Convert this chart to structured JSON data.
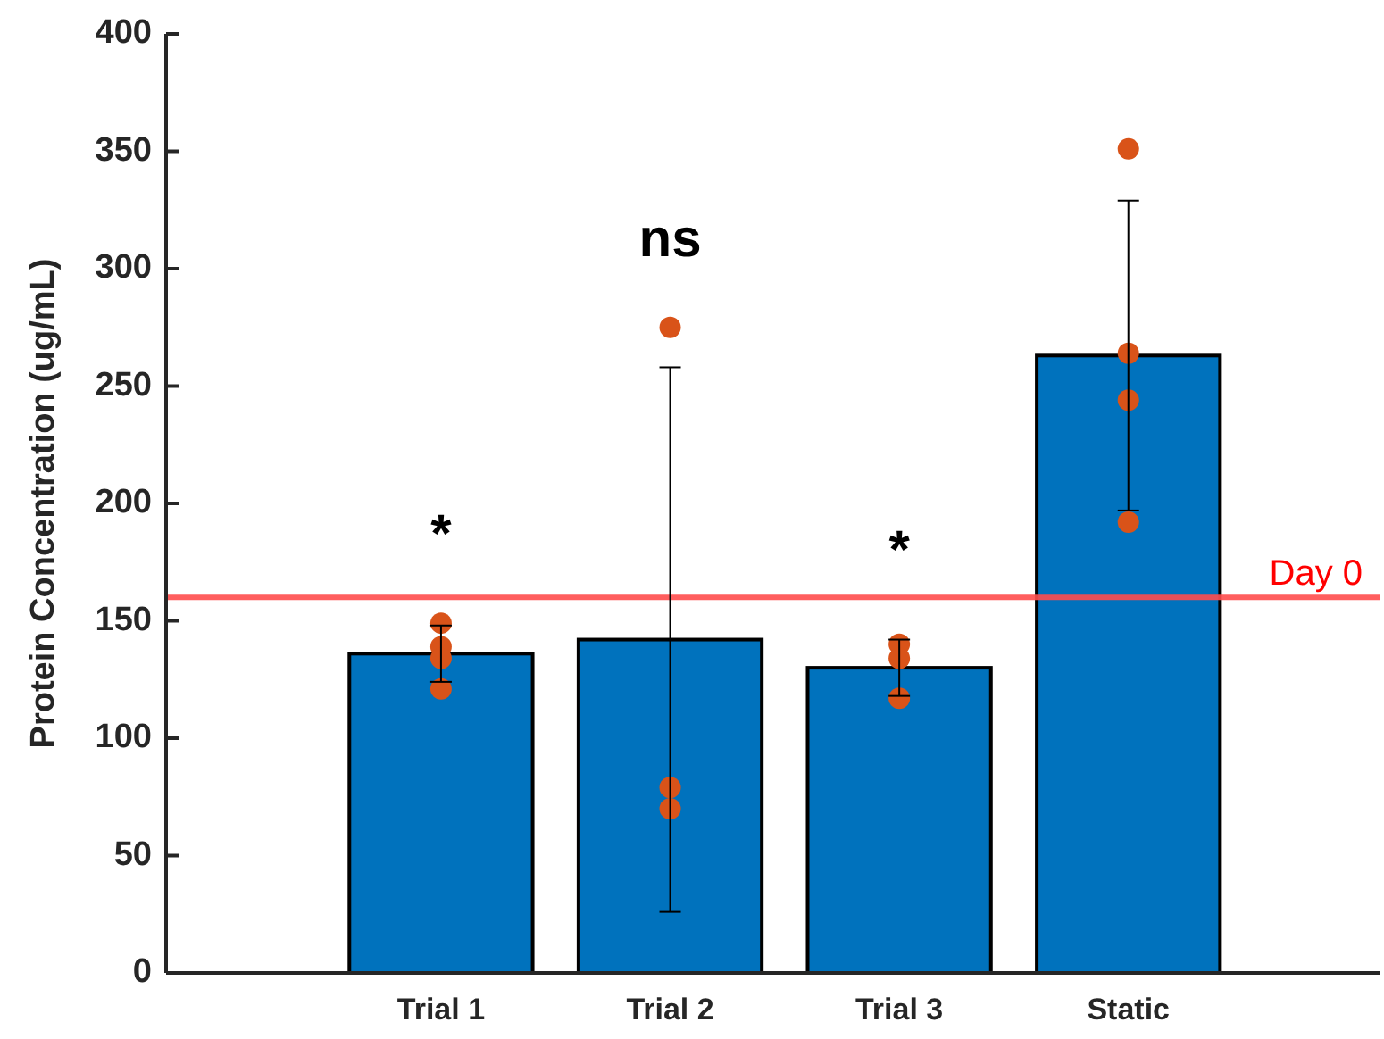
{
  "chart_data": {
    "type": "bar",
    "ylabel": "Protein Concentration (ug/mL)",
    "categories": [
      "Trial 1",
      "Trial 2",
      "Trial 3",
      "Static"
    ],
    "series": [
      {
        "type": "bar",
        "color": "#0072bd",
        "values": [
          136,
          142,
          130,
          263
        ],
        "errors": [
          12,
          116,
          12,
          66
        ]
      },
      {
        "type": "scatter",
        "color": "#d95319",
        "x": [
          "Trial 1",
          "Trial 1",
          "Trial 1",
          "Trial 1",
          "Trial 2",
          "Trial 2",
          "Trial 2",
          "Trial 3",
          "Trial 3",
          "Trial 3",
          "Static",
          "Static",
          "Static",
          "Static"
        ],
        "values": [
          149,
          139,
          134,
          121,
          275,
          79,
          70,
          140,
          134,
          117,
          351,
          264,
          244,
          192
        ]
      }
    ],
    "ylim": [
      0,
      400
    ],
    "yticks": [
      0,
      50,
      100,
      150,
      200,
      250,
      300,
      350,
      400
    ],
    "marker": "circle",
    "grid": false,
    "ref_lines": [
      {
        "axis": "y",
        "value": 160,
        "label": "Day 0",
        "color": "#ff4d4d"
      }
    ],
    "annotations": [
      "*",
      "ns",
      "*"
    ]
  }
}
